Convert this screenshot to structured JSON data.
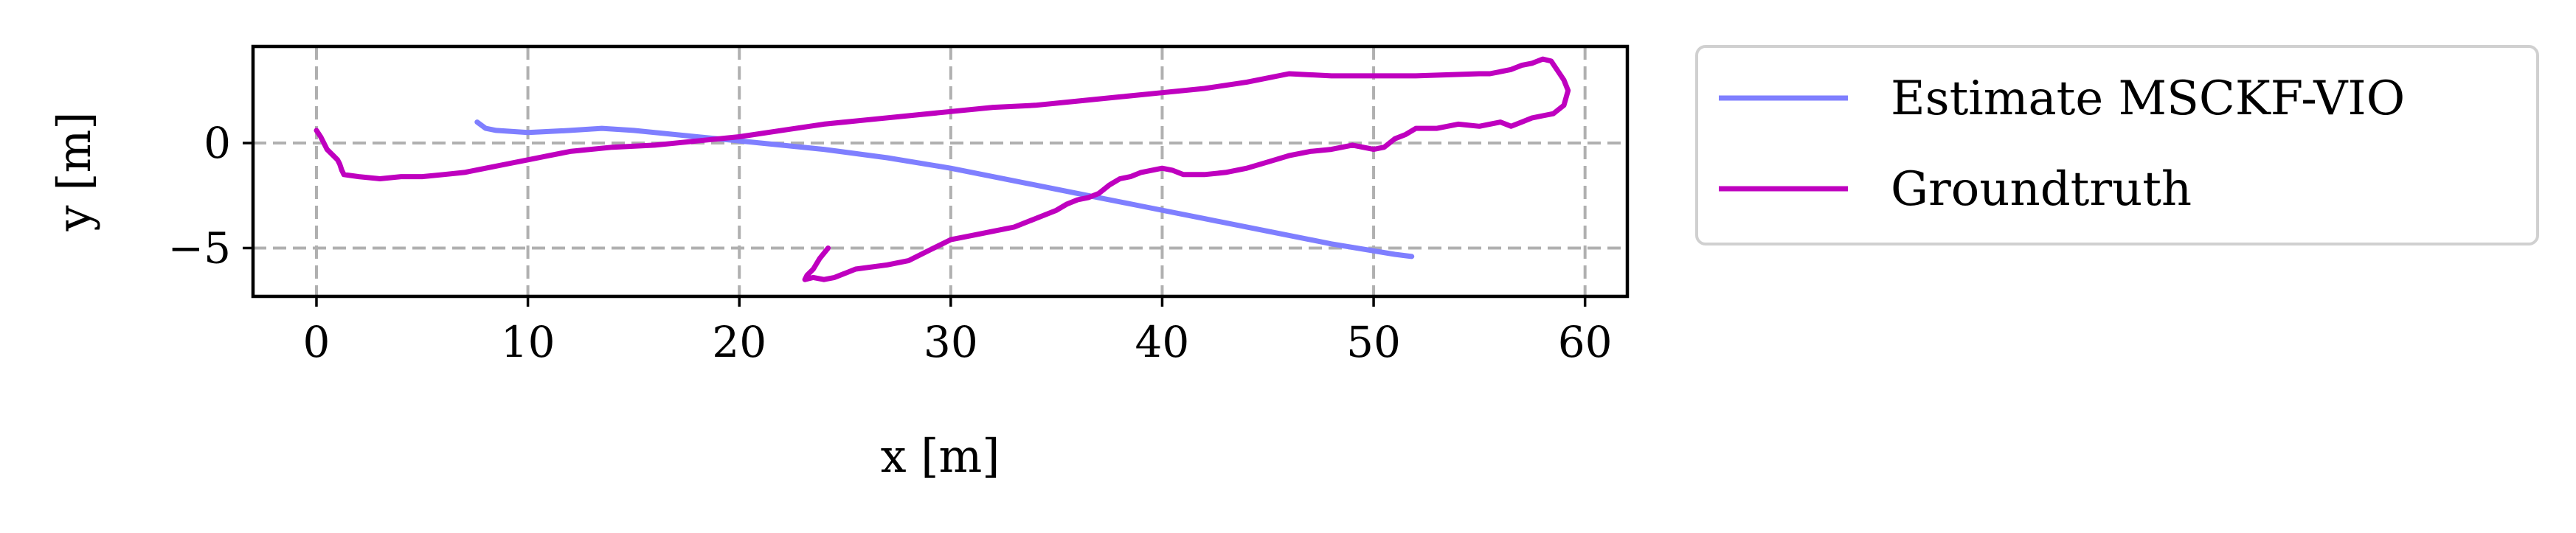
{
  "chart_data": {
    "type": "line",
    "title": "",
    "xlabel": "x [m]",
    "ylabel": "y [m]",
    "xlim": [
      -3,
      62
    ],
    "ylim": [
      -7.3,
      4.6
    ],
    "xticks": [
      0,
      10,
      20,
      30,
      40,
      50,
      60
    ],
    "xtick_labels": [
      "0",
      "10",
      "20",
      "30",
      "40",
      "50",
      "60"
    ],
    "yticks": [
      0,
      -5
    ],
    "ytick_labels": [
      "0",
      "−5"
    ],
    "grid": true,
    "legend_position": "outside-right-top",
    "series": [
      {
        "name": "Estimate MSCKF-VIO",
        "color": "#7f7fff",
        "x": [
          7.6,
          8.0,
          8.5,
          10.0,
          12.0,
          13.5,
          15.0,
          18.0,
          21.0,
          24.0,
          27.0,
          30.0,
          33.0,
          36.0,
          39.0,
          42.0,
          45.0,
          48.0,
          51.0,
          51.8
        ],
        "y": [
          1.0,
          0.7,
          0.6,
          0.5,
          0.6,
          0.7,
          0.6,
          0.3,
          0.0,
          -0.3,
          -0.7,
          -1.2,
          -1.8,
          -2.4,
          -3.0,
          -3.6,
          -4.2,
          -4.8,
          -5.3,
          -5.4
        ]
      },
      {
        "name": "Groundtruth",
        "color": "#bf00bf",
        "x": [
          24.2,
          23.8,
          23.5,
          23.2,
          23.1,
          23.5,
          24.0,
          24.5,
          25.5,
          27.0,
          28.0,
          29.0,
          30.0,
          31.0,
          32.0,
          33.0,
          34.0,
          35.0,
          35.5,
          36.0,
          36.5,
          37.0,
          37.5,
          38.0,
          38.5,
          39.0,
          39.5,
          40.0,
          40.5,
          41.0,
          42.0,
          43.0,
          44.0,
          45.0,
          46.0,
          47.0,
          48.0,
          49.0,
          50.0,
          50.5,
          51.0,
          51.5,
          52.0,
          53.0,
          54.0,
          55.0,
          55.5,
          56.0,
          56.5,
          57.0,
          57.5,
          58.0,
          58.5,
          59.0,
          59.2,
          59.0,
          58.8,
          58.4,
          58.0,
          57.5,
          57.0,
          56.5,
          56.0,
          55.5,
          55.0,
          52.0,
          50.0,
          48.0,
          46.0,
          44.0,
          42.0,
          40.0,
          38.0,
          36.0,
          34.0,
          32.0,
          30.0,
          28.0,
          26.0,
          24.0,
          22.0,
          20.0,
          18.0,
          16.0,
          14.0,
          12.0,
          11.0,
          10.0,
          9.0,
          8.0,
          7.0,
          6.0,
          5.0,
          4.0,
          3.0,
          2.0,
          1.3,
          1.2,
          1.1,
          1.0,
          0.8,
          0.5,
          0.3,
          0.2,
          0.0
        ],
        "y": [
          -5.0,
          -5.5,
          -6.0,
          -6.3,
          -6.5,
          -6.4,
          -6.5,
          -6.4,
          -6.0,
          -5.8,
          -5.6,
          -5.1,
          -4.6,
          -4.4,
          -4.2,
          -4.0,
          -3.6,
          -3.2,
          -2.9,
          -2.7,
          -2.6,
          -2.4,
          -2.0,
          -1.7,
          -1.6,
          -1.4,
          -1.3,
          -1.2,
          -1.3,
          -1.5,
          -1.5,
          -1.4,
          -1.2,
          -0.9,
          -0.6,
          -0.4,
          -0.3,
          -0.1,
          -0.3,
          -0.2,
          0.2,
          0.4,
          0.7,
          0.7,
          0.9,
          0.8,
          0.9,
          1.0,
          0.8,
          1.0,
          1.2,
          1.3,
          1.4,
          1.8,
          2.5,
          3.0,
          3.3,
          3.9,
          4.0,
          3.8,
          3.7,
          3.5,
          3.4,
          3.3,
          3.3,
          3.2,
          3.2,
          3.2,
          3.3,
          2.9,
          2.6,
          2.4,
          2.2,
          2.0,
          1.8,
          1.7,
          1.5,
          1.3,
          1.1,
          0.9,
          0.6,
          0.3,
          0.1,
          -0.1,
          -0.2,
          -0.4,
          -0.6,
          -0.8,
          -1.0,
          -1.2,
          -1.4,
          -1.5,
          -1.6,
          -1.6,
          -1.7,
          -1.6,
          -1.5,
          -1.3,
          -1.0,
          -0.8,
          -0.6,
          -0.3,
          0.1,
          0.3,
          0.6
        ]
      }
    ]
  }
}
